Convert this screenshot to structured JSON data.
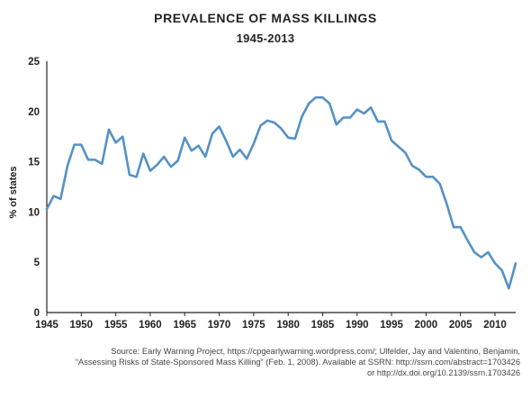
{
  "title": "PREVALENCE OF MASS KILLINGS",
  "subtitle": "1945-2013",
  "source_lines": [
    "Source: Early Warning Project, https://cpgearlywarning.wordpress.com/; Ulfelder, Jay and Valentino, Benjamin,",
    "“Assessing Risks of State-Sponsored Mass Killing” (Feb. 1, 2008). Available at SSRN: http://ssrn.com/abstract=1703426",
    "or http://dx.doi.org/10.2139/ssrn.1703426"
  ],
  "colors": {
    "line": "#5591c4",
    "axis": "#222222",
    "text": "#222222"
  },
  "chart_data": {
    "type": "line",
    "title": "PREVALENCE OF MASS KILLINGS",
    "subtitle": "1945-2013",
    "xlabel": "",
    "ylabel": "% of states",
    "xlim": [
      1945,
      2013
    ],
    "ylim": [
      0,
      25
    ],
    "xticks": [
      1945,
      1950,
      1955,
      1960,
      1965,
      1970,
      1975,
      1980,
      1985,
      1990,
      1995,
      2000,
      2005,
      2010
    ],
    "yticks": [
      0,
      5,
      10,
      15,
      20,
      25
    ],
    "grid": false,
    "series": [
      {
        "name": "",
        "x": [
          1945,
          1946,
          1947,
          1948,
          1949,
          1950,
          1951,
          1952,
          1953,
          1954,
          1955,
          1956,
          1957,
          1958,
          1959,
          1960,
          1961,
          1962,
          1963,
          1964,
          1965,
          1966,
          1967,
          1968,
          1969,
          1970,
          1971,
          1972,
          1973,
          1974,
          1975,
          1976,
          1977,
          1978,
          1979,
          1980,
          1981,
          1982,
          1983,
          1984,
          1985,
          1986,
          1987,
          1988,
          1989,
          1990,
          1991,
          1992,
          1993,
          1994,
          1995,
          1996,
          1997,
          1998,
          1999,
          2000,
          2001,
          2002,
          2003,
          2004,
          2005,
          2006,
          2007,
          2008,
          2009,
          2010,
          2011,
          2012,
          2013
        ],
        "y": [
          10.3,
          11.6,
          11.3,
          14.6,
          16.7,
          16.7,
          15.2,
          15.2,
          14.8,
          18.2,
          16.9,
          17.5,
          13.7,
          13.5,
          15.8,
          14.1,
          14.7,
          15.5,
          14.5,
          15.1,
          17.4,
          16.1,
          16.6,
          15.5,
          17.8,
          18.5,
          17.1,
          15.5,
          16.2,
          15.3,
          16.8,
          18.6,
          19.1,
          18.9,
          18.3,
          17.4,
          17.3,
          19.5,
          20.8,
          21.4,
          21.4,
          20.8,
          18.7,
          19.4,
          19.4,
          20.2,
          19.8,
          20.4,
          19.0,
          19.0,
          17.1,
          16.5,
          15.9,
          14.6,
          14.2,
          13.5,
          13.5,
          12.8,
          10.8,
          8.5,
          8.5,
          7.2,
          6.0,
          5.5,
          6.0,
          4.9,
          4.2,
          2.4,
          4.9
        ]
      }
    ]
  }
}
